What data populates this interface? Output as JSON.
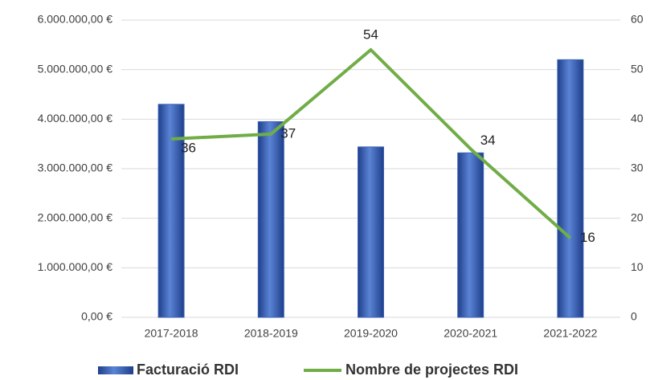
{
  "chart_data": {
    "type": "combo",
    "categories": [
      "2017-2018",
      "2018-2019",
      "2019-2020",
      "2020-2021",
      "2021-2022"
    ],
    "series": [
      {
        "name": "Facturació RDI",
        "type": "bar",
        "color": "#3a62b8",
        "values": [
          4300000,
          3950000,
          3440000,
          3320000,
          5200000
        ]
      },
      {
        "name": "Nombre de projectes RDI",
        "type": "line",
        "axis": "y2",
        "color": "#70ad47",
        "values": [
          36,
          37,
          54,
          34,
          16
        ]
      }
    ],
    "ylim": [
      0,
      6000000
    ],
    "yticks": [
      {
        "value": 0,
        "label": "0,00 €"
      },
      {
        "value": 1000000,
        "label": "1.000.000,00 €"
      },
      {
        "value": 2000000,
        "label": "2.000.000,00 €"
      },
      {
        "value": 3000000,
        "label": "3.000.000,00 €"
      },
      {
        "value": 4000000,
        "label": "4.000.000,00 €"
      },
      {
        "value": 5000000,
        "label": "5.000.000,00 €"
      },
      {
        "value": 6000000,
        "label": "6.000.000,00 €"
      }
    ],
    "y2lim": [
      0,
      60
    ],
    "y2ticks": [
      0,
      10,
      20,
      30,
      40,
      50,
      60
    ],
    "grid": true,
    "legend": "bottom"
  }
}
